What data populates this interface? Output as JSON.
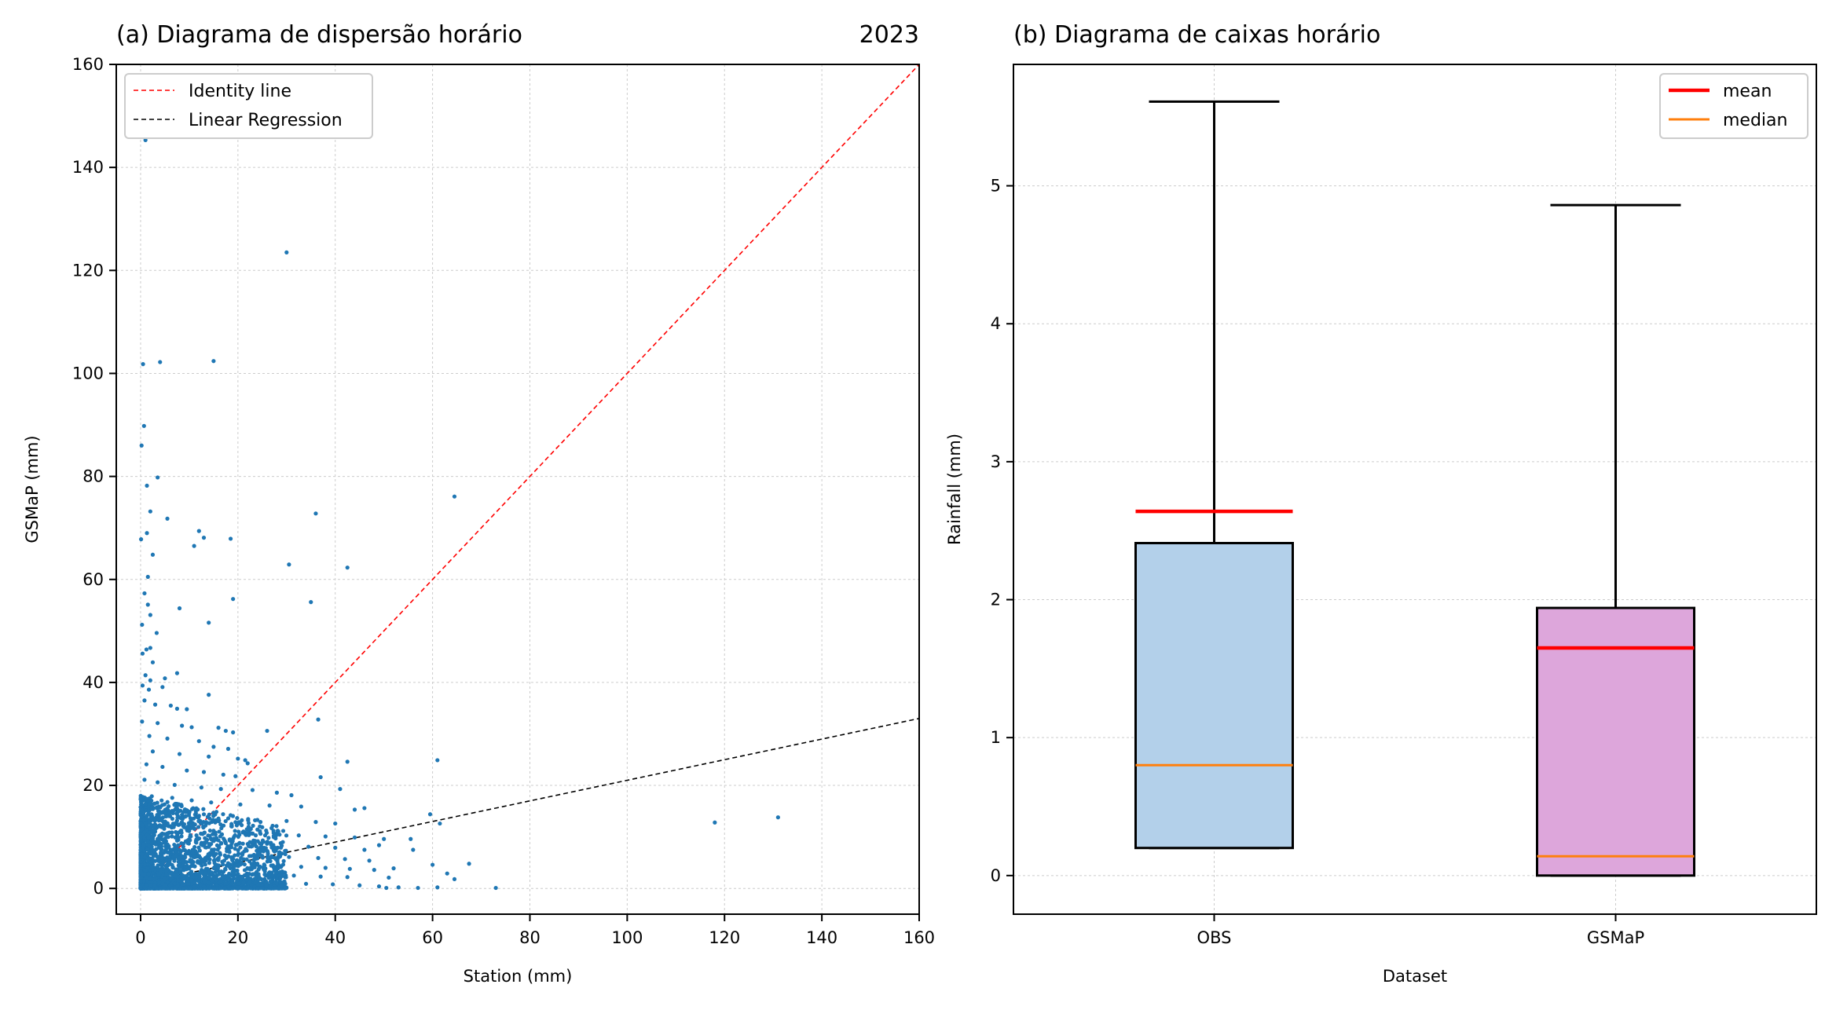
{
  "chart_data": [
    {
      "type": "scatter",
      "title": "(a) Diagrama de dispersão horário",
      "year_label": "2023",
      "xlabel": "Station (mm)",
      "ylabel": "GSMaP (mm)",
      "xlim": [
        -5,
        160
      ],
      "ylim": [
        -5,
        160
      ],
      "xticks": [
        0,
        20,
        40,
        60,
        80,
        100,
        120,
        140,
        160
      ],
      "yticks": [
        0,
        20,
        40,
        60,
        80,
        100,
        120,
        140,
        160
      ],
      "grid": true,
      "legend_position": "top-left",
      "legend": [
        {
          "label": "Identity line",
          "color": "#ff0000",
          "style": "dashed"
        },
        {
          "label": "Linear Regression",
          "color": "#000000",
          "style": "dashed"
        }
      ],
      "identity_line": {
        "x": [
          0,
          160
        ],
        "y": [
          0,
          160
        ]
      },
      "regression_line": {
        "x": [
          0,
          160
        ],
        "y": [
          1.0,
          33.0
        ]
      },
      "point_color": "#1f77b4",
      "points": [
        [
          1,
          145.3
        ],
        [
          30,
          123.5
        ],
        [
          0.5,
          101.8
        ],
        [
          4,
          102.2
        ],
        [
          15,
          102.4
        ],
        [
          0.7,
          89.8
        ],
        [
          0.2,
          86
        ],
        [
          3.5,
          79.8
        ],
        [
          1.3,
          78.2
        ],
        [
          36,
          72.8
        ],
        [
          2,
          73.2
        ],
        [
          5.5,
          71.8
        ],
        [
          64.5,
          76.1
        ],
        [
          12,
          69.4
        ],
        [
          13,
          68.1
        ],
        [
          18.5,
          67.9
        ],
        [
          11,
          66.5
        ],
        [
          0.1,
          67.8
        ],
        [
          1.3,
          69
        ],
        [
          2.5,
          64.8
        ],
        [
          30.5,
          62.9
        ],
        [
          42.5,
          62.3
        ],
        [
          1.5,
          60.5
        ],
        [
          0.8,
          57.3
        ],
        [
          19,
          56.2
        ],
        [
          1.5,
          55.1
        ],
        [
          8,
          54.4
        ],
        [
          35,
          55.6
        ],
        [
          2,
          53.1
        ],
        [
          0.3,
          51.2
        ],
        [
          14,
          51.6
        ],
        [
          3.3,
          49.6
        ],
        [
          1.2,
          46.4
        ],
        [
          2,
          46.7
        ],
        [
          0.4,
          45.6
        ],
        [
          2.5,
          43.9
        ],
        [
          1,
          41.4
        ],
        [
          2,
          40.4
        ],
        [
          7.5,
          41.8
        ],
        [
          5,
          40.8
        ],
        [
          4.5,
          39.1
        ],
        [
          0.4,
          39.4
        ],
        [
          1.7,
          38.6
        ],
        [
          14,
          37.6
        ],
        [
          0.8,
          36.5
        ],
        [
          3,
          35.7
        ],
        [
          6.2,
          35.5
        ],
        [
          7.5,
          34.9
        ],
        [
          9.5,
          34.8
        ],
        [
          36.5,
          32.8
        ],
        [
          0.3,
          32.4
        ],
        [
          3.5,
          32.1
        ],
        [
          8.5,
          31.6
        ],
        [
          10.5,
          31.3
        ],
        [
          16,
          31.2
        ],
        [
          17.5,
          30.6
        ],
        [
          19,
          30.3
        ],
        [
          26,
          30.6
        ],
        [
          1.8,
          29.6
        ],
        [
          5.5,
          29.1
        ],
        [
          12,
          28.6
        ],
        [
          15,
          27.5
        ],
        [
          18,
          27.1
        ],
        [
          2.5,
          26.6
        ],
        [
          8,
          26.1
        ],
        [
          14,
          25.6
        ],
        [
          20,
          25.2
        ],
        [
          21.5,
          24.9
        ],
        [
          22,
          24.3
        ],
        [
          42.5,
          24.6
        ],
        [
          61,
          24.9
        ],
        [
          1.2,
          24.1
        ],
        [
          4.5,
          23.6
        ],
        [
          9.5,
          22.9
        ],
        [
          13,
          22.6
        ],
        [
          17,
          22.1
        ],
        [
          19.5,
          21.8
        ],
        [
          37,
          21.6
        ],
        [
          0.8,
          21.1
        ],
        [
          3.5,
          20.6
        ],
        [
          7,
          20.1
        ],
        [
          12.5,
          19.6
        ],
        [
          16.5,
          19.3
        ],
        [
          23,
          19.1
        ],
        [
          28,
          18.6
        ],
        [
          41,
          19.3
        ],
        [
          31,
          18.1
        ],
        [
          2.3,
          17.9
        ],
        [
          6.5,
          17.6
        ],
        [
          10.5,
          17.1
        ],
        [
          14.5,
          16.7
        ],
        [
          20.5,
          16.3
        ],
        [
          26.5,
          16.1
        ],
        [
          33,
          15.9
        ],
        [
          44,
          15.3
        ],
        [
          46,
          15.6
        ],
        [
          1.6,
          15.1
        ],
        [
          5,
          14.6
        ],
        [
          8.5,
          14.3
        ],
        [
          12,
          14.1
        ],
        [
          18,
          13.6
        ],
        [
          24,
          13.3
        ],
        [
          30,
          13.1
        ],
        [
          36,
          12.9
        ],
        [
          40,
          12.6
        ],
        [
          59.5,
          14.4
        ],
        [
          61.5,
          12.6
        ],
        [
          118,
          12.8
        ],
        [
          131,
          13.8
        ],
        [
          2.8,
          12.1
        ],
        [
          6.8,
          11.9
        ],
        [
          11,
          11.6
        ],
        [
          15,
          11.2
        ],
        [
          21,
          10.9
        ],
        [
          27.5,
          10.6
        ],
        [
          32.5,
          10.3
        ],
        [
          38,
          10.1
        ],
        [
          44,
          9.9
        ],
        [
          50,
          9.6
        ],
        [
          55.5,
          9.6
        ],
        [
          3.5,
          9.6
        ],
        [
          7.5,
          9.3
        ],
        [
          13.5,
          9.1
        ],
        [
          17.5,
          8.8
        ],
        [
          23.5,
          8.6
        ],
        [
          29,
          8.3
        ],
        [
          34.5,
          8.1
        ],
        [
          40,
          7.9
        ],
        [
          46,
          7.5
        ],
        [
          49,
          8.4
        ],
        [
          56,
          7.5
        ],
        [
          4.2,
          7.1
        ],
        [
          9.5,
          6.9
        ],
        [
          15.5,
          6.7
        ],
        [
          20,
          6.5
        ],
        [
          25,
          6.3
        ],
        [
          30.5,
          6.1
        ],
        [
          36.5,
          5.9
        ],
        [
          42,
          5.7
        ],
        [
          47,
          5.4
        ],
        [
          1.5,
          5.6
        ],
        [
          6,
          5.4
        ],
        [
          12,
          5.1
        ],
        [
          18,
          4.9
        ],
        [
          24,
          4.6
        ],
        [
          28.5,
          4.4
        ],
        [
          33,
          4.2
        ],
        [
          38,
          4.0
        ],
        [
          43,
          3.8
        ],
        [
          48,
          3.6
        ],
        [
          52,
          3.9
        ],
        [
          60,
          4.6
        ],
        [
          67.5,
          4.8
        ],
        [
          3,
          3.6
        ],
        [
          8.2,
          3.4
        ],
        [
          14.5,
          3.1
        ],
        [
          19,
          2.9
        ],
        [
          25.5,
          2.7
        ],
        [
          31.5,
          2.5
        ],
        [
          37,
          2.3
        ],
        [
          42.5,
          2.2
        ],
        [
          51,
          2.1
        ],
        [
          63,
          2.9
        ],
        [
          64.5,
          1.8
        ],
        [
          5,
          1.9
        ],
        [
          10.5,
          1.6
        ],
        [
          16.5,
          1.4
        ],
        [
          22.5,
          1.2
        ],
        [
          28,
          1.0
        ],
        [
          34,
          0.9
        ],
        [
          39.5,
          0.8
        ],
        [
          45,
          0.6
        ],
        [
          49,
          0.4
        ],
        [
          50.5,
          0.1
        ],
        [
          53,
          0.2
        ],
        [
          57,
          0.1
        ],
        [
          61,
          0.2
        ],
        [
          73,
          0.1
        ],
        [
          0.3,
          12.3
        ],
        [
          0.6,
          8.4
        ],
        [
          0.9,
          4.6
        ],
        [
          1.2,
          2.1
        ],
        [
          2.1,
          0.5
        ],
        [
          7,
          0.9
        ],
        [
          13,
          0.4
        ],
        [
          20,
          0.2
        ]
      ]
    },
    {
      "type": "box",
      "title": "(b) Diagrama de caixas horário",
      "xlabel": "Dataset",
      "ylabel": "Rainfall (mm)",
      "ylim": [
        -0.28,
        5.88
      ],
      "yticks": [
        0,
        1,
        2,
        3,
        4,
        5
      ],
      "grid": true,
      "legend_position": "top-right",
      "legend": [
        {
          "label": "mean",
          "color": "#ff0000"
        },
        {
          "label": "median",
          "color": "#ff7f0e"
        }
      ],
      "categories": [
        "OBS",
        "GSMaP"
      ],
      "boxes": [
        {
          "name": "OBS",
          "q1": 0.2,
          "median": 0.8,
          "q3": 2.41,
          "whisker_low": 0.2,
          "whisker_high": 5.61,
          "mean": 2.64,
          "color": "#b3d0ea"
        },
        {
          "name": "GSMaP",
          "q1": 0.0,
          "median": 0.14,
          "q3": 1.94,
          "whisker_low": 0.0,
          "whisker_high": 4.86,
          "mean": 1.65,
          "color": "#dda6db"
        }
      ]
    }
  ]
}
